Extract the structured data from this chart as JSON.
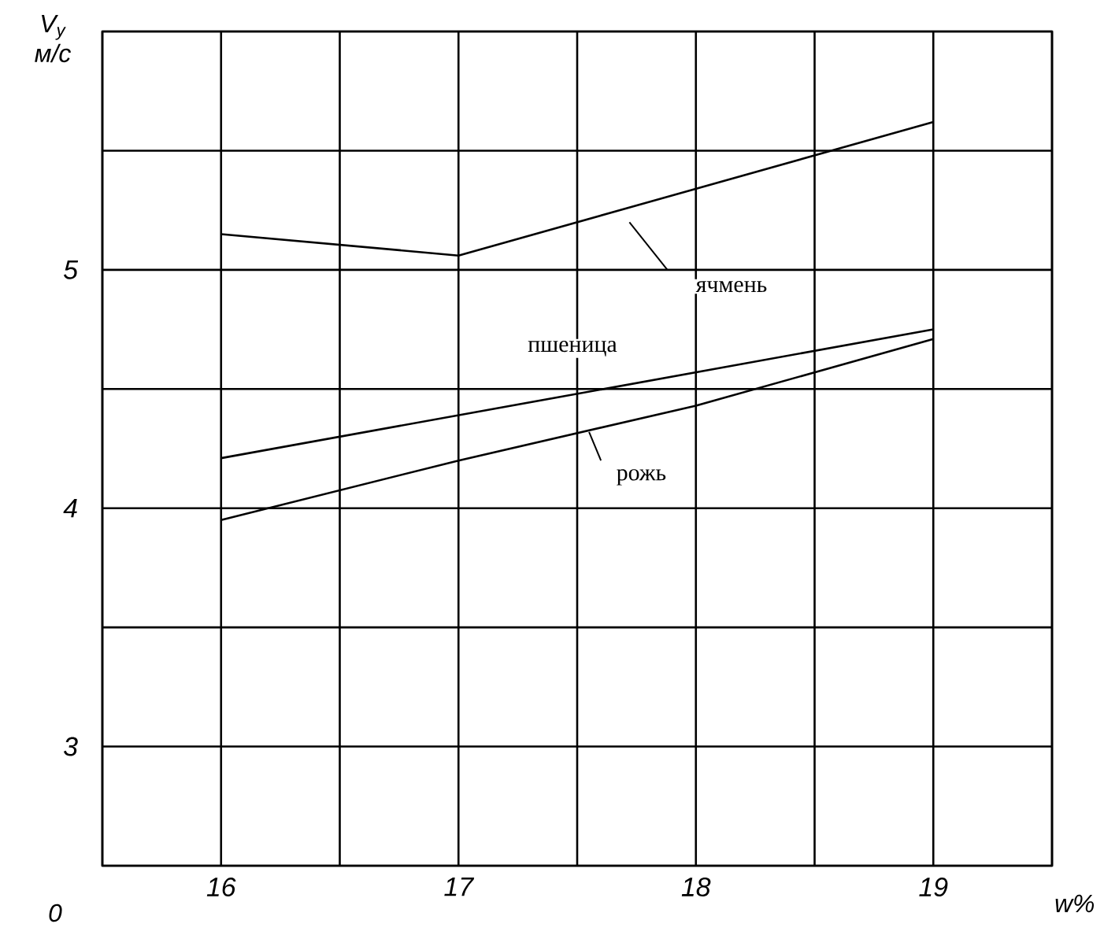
{
  "chart_data": {
    "type": "line",
    "xlabel": "w%",
    "ylabel": "V$_{y}$ м/с",
    "xlim": [
      15.5,
      19.5
    ],
    "ylim": [
      2.5,
      6.0
    ],
    "xticks": [
      {
        "value": 15.5,
        "label": null
      },
      16,
      {
        "value": 16.5,
        "label": null
      },
      17,
      {
        "value": 17.5,
        "label": null
      },
      18,
      {
        "value": 18.5,
        "label": null
      },
      19,
      {
        "value": 19.5,
        "label": null
      }
    ],
    "yticks": [
      {
        "value": 2.5,
        "label": null
      },
      3,
      {
        "value": 3.5,
        "label": null
      },
      4,
      {
        "value": 4.5,
        "label": null
      },
      5,
      {
        "value": 5.5,
        "label": null
      },
      {
        "value": 6.0,
        "label": null
      }
    ],
    "grid": true,
    "marker": "none",
    "line_style": "solid",
    "annotations": [
      "0"
    ],
    "series": [
      {
        "name": "ячмень",
        "color": "#000000",
        "x": [
          16,
          17,
          19
        ],
        "values": [
          5.15,
          5.06,
          5.62
        ]
      },
      {
        "name": "пшеница",
        "color": "#000000",
        "x": [
          16,
          19
        ],
        "values": [
          4.21,
          4.75
        ]
      },
      {
        "name": "рожь",
        "color": "#000000",
        "x": [
          16,
          17,
          18,
          19
        ],
        "values": [
          3.95,
          4.2,
          4.43,
          4.71
        ]
      }
    ]
  }
}
